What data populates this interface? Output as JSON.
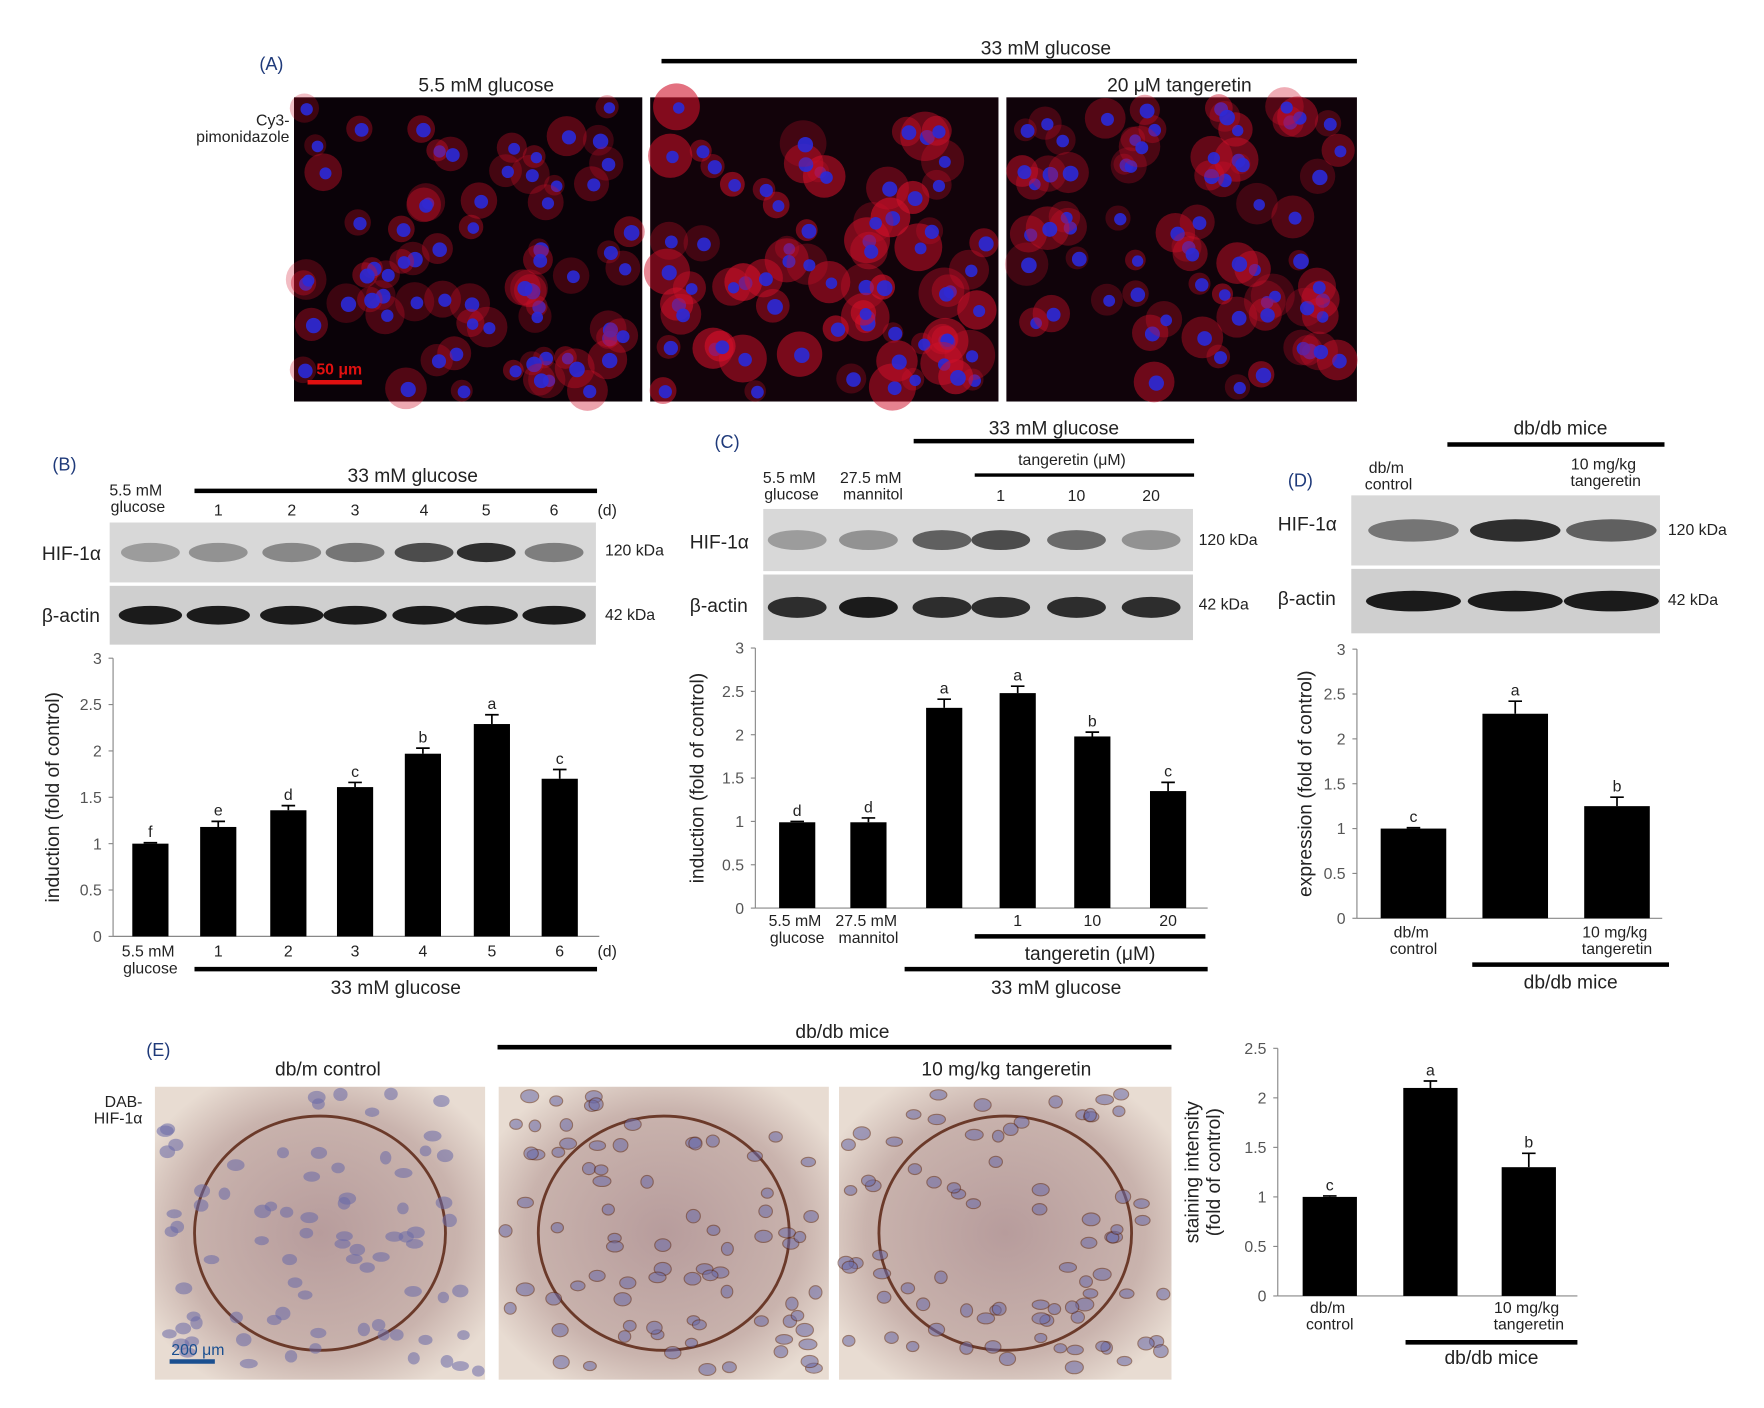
{
  "panels": {
    "A": {
      "label": "(A)",
      "group": "33 mM glucose",
      "conditions": [
        "5.5 mM glucose",
        "20 μM tangeretin"
      ],
      "stain": "Cy3-pimonidazole",
      "scale_bar": "50 μm"
    },
    "B": {
      "label": "(B)",
      "control": "5.5 mM glucose",
      "group": "33 mM glucose",
      "lanes": [
        "1",
        "2",
        "3",
        "4",
        "5",
        "6"
      ],
      "unit": "(d)",
      "rows": [
        "HIF-1α",
        "β-actin"
      ],
      "sizes": [
        "120 kDa",
        "42 kDa"
      ]
    },
    "C": {
      "label": "(C)",
      "group": "33 mM glucose",
      "subgroup": "tangeretin (μM)",
      "controls": [
        "5.5 mM glucose",
        "27.5 mM mannitol"
      ],
      "lanes": [
        "1",
        "10",
        "20"
      ],
      "rows": [
        "HIF-1α",
        "β-actin"
      ],
      "sizes": [
        "120 kDa",
        "42 kDa"
      ]
    },
    "D": {
      "label": "(D)",
      "group": "db/db mice",
      "control": "db/m control",
      "treatment": "10 mg/kg tangeretin",
      "rows": [
        "HIF-1α",
        "β-actin"
      ],
      "sizes": [
        "120 kDa",
        "42 kDa"
      ]
    },
    "E": {
      "label": "(E)",
      "group": "db/db mice",
      "control": "db/m control",
      "treatment": "10 mg/kg tangeretin",
      "stain": "DAB-HIF-1α",
      "scale_bar": "200 μm"
    }
  },
  "chart_data": [
    {
      "type": "bar",
      "ylabel": "induction (fold of control)",
      "categories": [
        "5.5 mM glucose",
        "1",
        "2",
        "3",
        "4",
        "5",
        "6"
      ],
      "x_unit": "(d)",
      "groups": [
        "33 mM glucose"
      ],
      "values": [
        1.0,
        1.18,
        1.36,
        1.61,
        1.97,
        2.29,
        1.7
      ],
      "errors": [
        0.01,
        0.06,
        0.05,
        0.05,
        0.06,
        0.1,
        0.1
      ],
      "letters": [
        "f",
        "e",
        "d",
        "c",
        "b",
        "a",
        "c"
      ],
      "color": "#000000",
      "ylim": [
        0,
        3
      ],
      "yticks": [
        0,
        0.5,
        1,
        1.5,
        2,
        2.5,
        3
      ]
    },
    {
      "type": "bar",
      "ylabel": "induction (fold of control)",
      "categories": [
        "5.5 mM glucose",
        "27.5 mM mannitol",
        null,
        "1",
        "10",
        "20"
      ],
      "groups": [
        "tangeretin (μM)",
        "33 mM glucose"
      ],
      "values": [
        0.99,
        0.99,
        2.31,
        2.48,
        1.98,
        1.35
      ],
      "errors": [
        0.01,
        0.05,
        0.1,
        0.08,
        0.05,
        0.1
      ],
      "letters": [
        "d",
        "d",
        "a",
        "a",
        "b",
        "c"
      ],
      "color": "#000000",
      "ylim": [
        0,
        3
      ],
      "yticks": [
        0,
        0.5,
        1,
        1.5,
        2,
        2.5,
        3
      ]
    },
    {
      "type": "bar",
      "ylabel": "expression (fold of control)",
      "categories": [
        "db/m control",
        null,
        "10 mg/kg tangeretin"
      ],
      "groups": [
        "db/db mice"
      ],
      "values": [
        1.0,
        2.28,
        1.25
      ],
      "errors": [
        0.01,
        0.14,
        0.1
      ],
      "letters": [
        "c",
        "a",
        "b"
      ],
      "color": "#000000",
      "ylim": [
        0,
        3
      ],
      "yticks": [
        0,
        0.5,
        1,
        1.5,
        2,
        2.5,
        3
      ]
    },
    {
      "type": "bar",
      "ylabel": [
        "staining intensity",
        "(fold of control)"
      ],
      "categories": [
        "db/m control",
        null,
        "10 mg/kg tangeretin"
      ],
      "groups": [
        "db/db mice"
      ],
      "values": [
        1.0,
        2.1,
        1.3
      ],
      "errors": [
        0.01,
        0.07,
        0.14
      ],
      "letters": [
        "c",
        "a",
        "b"
      ],
      "color": "#000000",
      "ylim": [
        0,
        2.5
      ],
      "yticks": [
        0,
        0.5,
        1,
        1.5,
        2,
        2.5
      ]
    }
  ]
}
